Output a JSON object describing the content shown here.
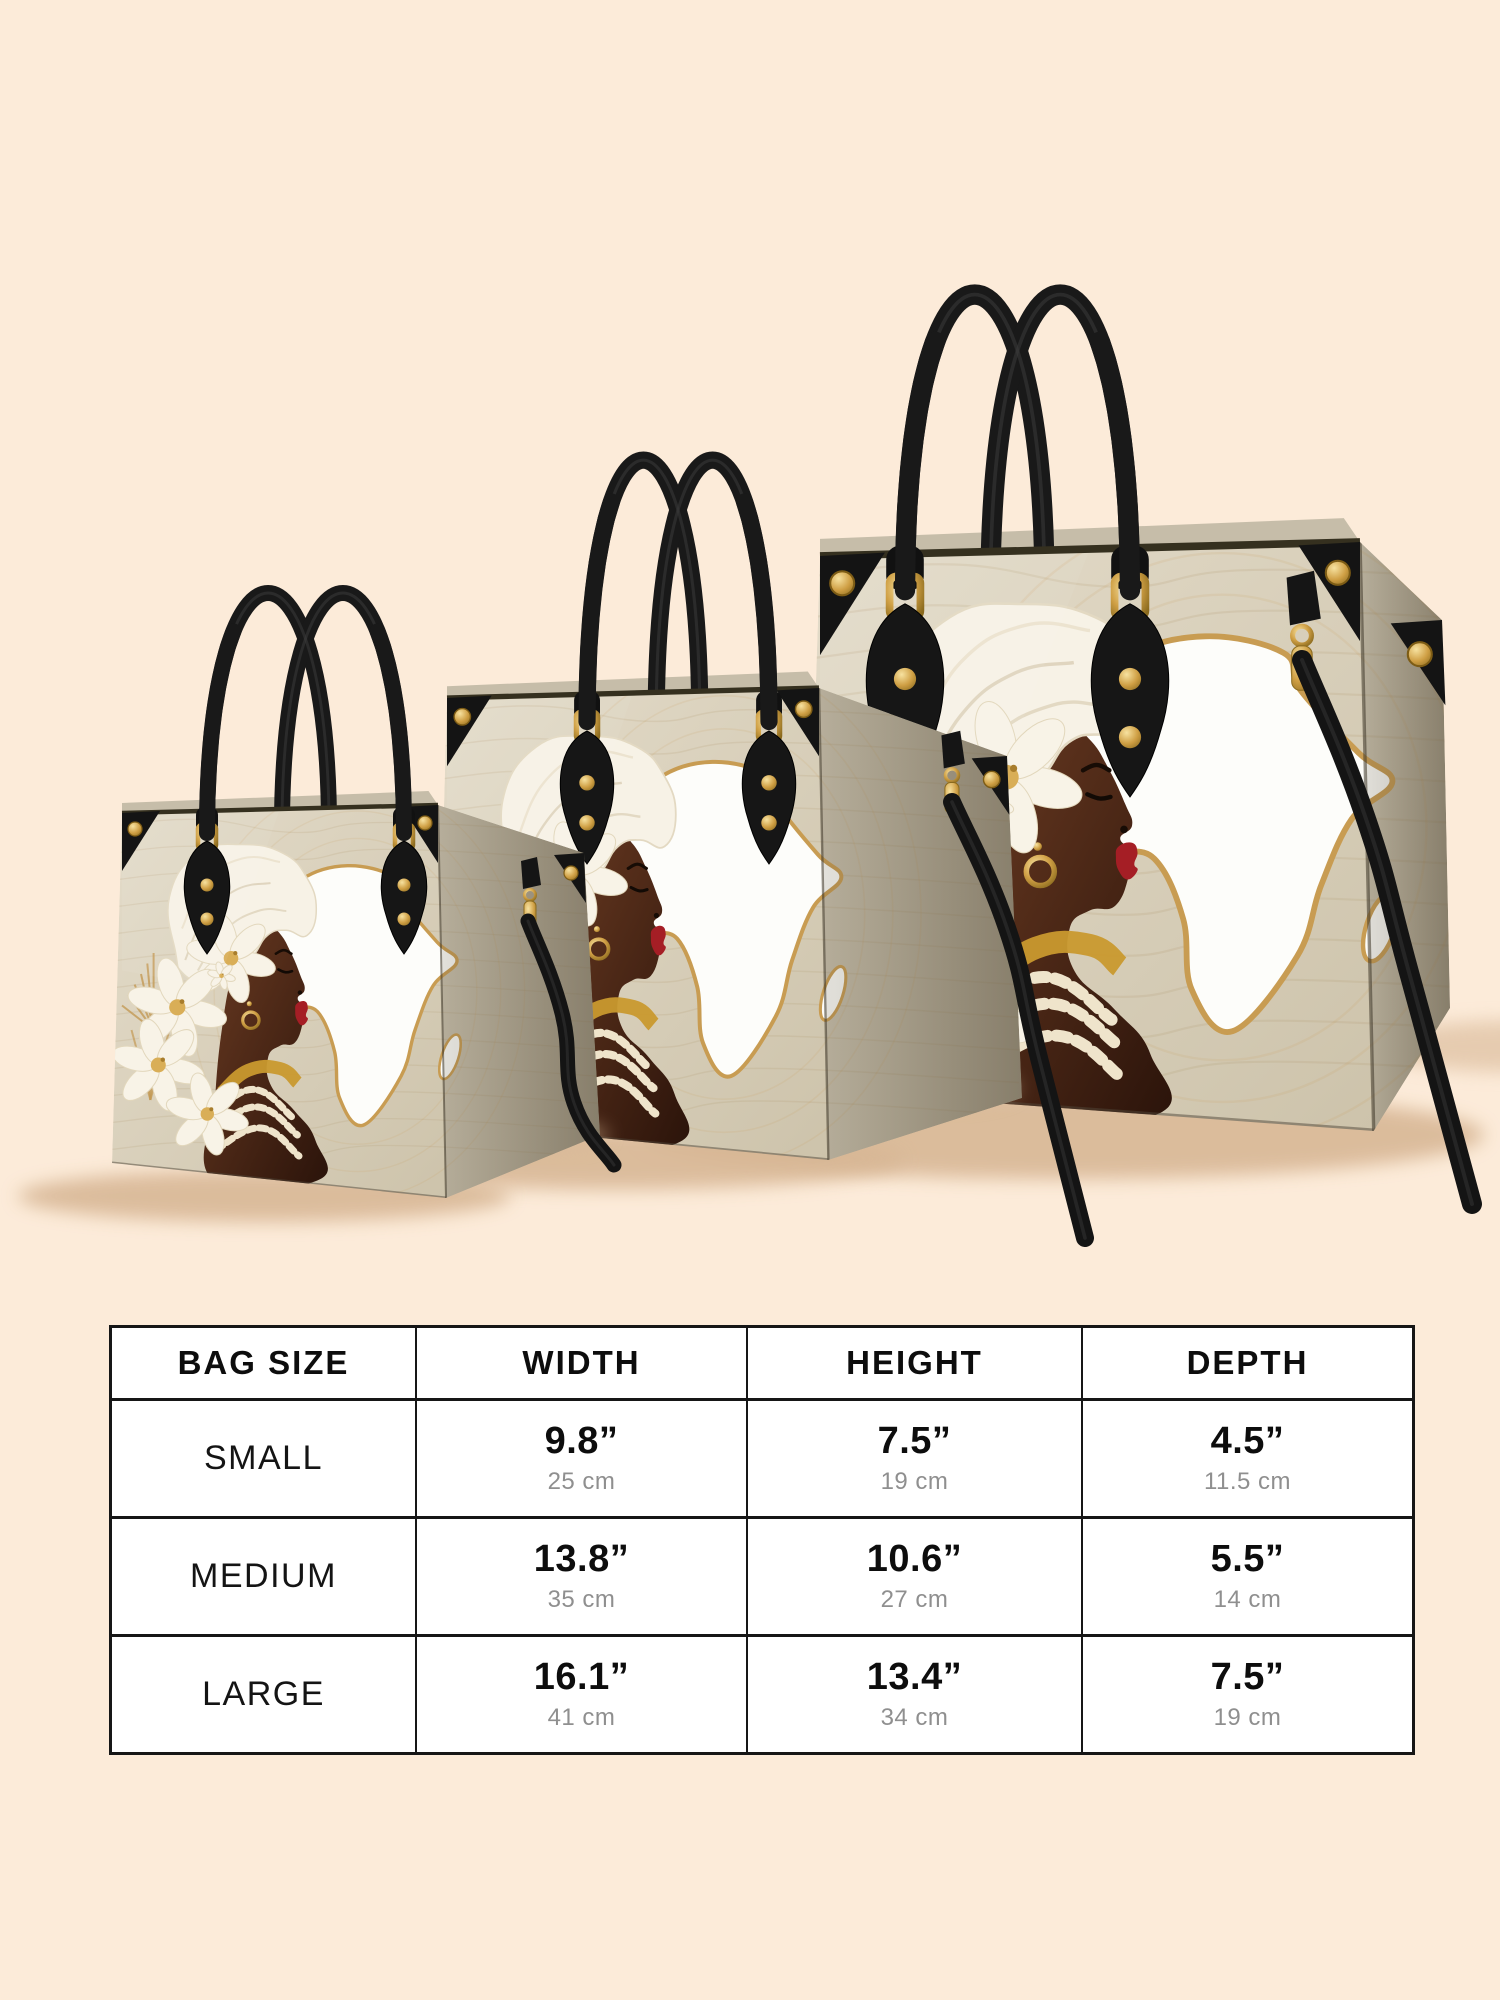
{
  "page": {
    "background_color": "#fcebd9"
  },
  "product_photo": {
    "bags": [
      {
        "name": "large-handbag",
        "size_label": "LARGE"
      },
      {
        "name": "medium-handbag",
        "size_label": "MEDIUM"
      },
      {
        "name": "small-handbag",
        "size_label": "SMALL"
      }
    ],
    "artwork_icons": [
      "african-woman-portrait",
      "white-headwrap",
      "lily-flowers",
      "africa-map-outline",
      "black-handles",
      "gold-studs",
      "shoulder-strap"
    ]
  },
  "table": {
    "headers": [
      "BAG SIZE",
      "WIDTH",
      "HEIGHT",
      "DEPTH"
    ],
    "rows": [
      {
        "size": "SMALL",
        "width_in": "9.8”",
        "width_cm": "25 cm",
        "height_in": "7.5”",
        "height_cm": "19 cm",
        "depth_in": "4.5”",
        "depth_cm": "11.5 cm"
      },
      {
        "size": "MEDIUM",
        "width_in": "13.8”",
        "width_cm": "35 cm",
        "height_in": "10.6”",
        "height_cm": "27 cm",
        "depth_in": "5.5”",
        "depth_cm": "14 cm"
      },
      {
        "size": "LARGE",
        "width_in": "16.1”",
        "width_cm": "41 cm",
        "height_in": "13.4”",
        "height_cm": "34 cm",
        "depth_in": "7.5”",
        "depth_cm": "19 cm"
      }
    ]
  },
  "chart_data": {
    "type": "table",
    "title": "Bag size chart",
    "columns": [
      "BAG SIZE",
      "WIDTH",
      "HEIGHT",
      "DEPTH"
    ],
    "units": {
      "primary": "inches",
      "secondary": "cm"
    },
    "rows": [
      {
        "size": "SMALL",
        "width_in": 9.8,
        "width_cm": 25,
        "height_in": 7.5,
        "height_cm": 19,
        "depth_in": 4.5,
        "depth_cm": 11.5
      },
      {
        "size": "MEDIUM",
        "width_in": 13.8,
        "width_cm": 35,
        "height_in": 10.6,
        "height_cm": 27,
        "depth_in": 5.5,
        "depth_cm": 14
      },
      {
        "size": "LARGE",
        "width_in": 16.1,
        "width_cm": 41,
        "height_in": 13.4,
        "height_cm": 34,
        "depth_in": 7.5,
        "depth_cm": 19
      }
    ]
  },
  "colors": {
    "background": "#fcebd9",
    "table_background": "#ffffff",
    "table_border": "#161616",
    "text_primary": "#0d0d0d",
    "text_secondary": "#8f8f8f",
    "leather_light": "#e4dcca",
    "leather_mid": "#cdc3ab",
    "leather_side": "#b3aa94",
    "leather_back": "#c6bda9",
    "gold": "#cf9f44",
    "gold_deep": "#8a6a1e",
    "map_outline": "#c89c52",
    "map_fill": "#fdfdfa",
    "handle_black": "#191919",
    "skin_dark": "#2a130a",
    "skin_mid": "#6b3b22",
    "lip_red": "#a51e25",
    "turban_white": "#f7f2e6",
    "flower_white": "#f8f3e7",
    "bead_cream": "#efe4cb",
    "shadow_tan": "#d8b795"
  }
}
